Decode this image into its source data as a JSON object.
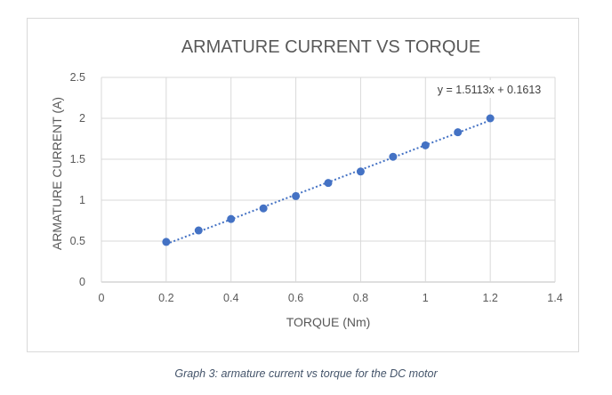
{
  "chart_data": {
    "type": "scatter",
    "title": "ARMATURE CURRENT VS TORQUE",
    "xlabel": "TORQUE (Nm)",
    "ylabel": "ARMATURE CURRENT (A)",
    "xlim": [
      0,
      1.4
    ],
    "ylim": [
      0,
      2.5
    ],
    "xticks": [
      "0",
      "0.2",
      "0.4",
      "0.6",
      "0.8",
      "1",
      "1.2",
      "1.4"
    ],
    "yticks": [
      "0",
      "0.5",
      "1",
      "1.5",
      "2",
      "2.5"
    ],
    "grid": true,
    "series": [
      {
        "x": [
          0.2,
          0.3,
          0.4,
          0.5,
          0.6,
          0.7,
          0.8,
          0.9,
          1.0,
          1.1,
          1.2
        ],
        "y": [
          0.49,
          0.63,
          0.77,
          0.9,
          1.05,
          1.21,
          1.35,
          1.53,
          1.67,
          1.83,
          2.0
        ],
        "color": "#4472c4"
      }
    ],
    "trendline": {
      "type": "linear",
      "slope": 1.5113,
      "intercept": 0.1613,
      "x_range": [
        0.2,
        1.2
      ],
      "style": "dotted",
      "color": "#4472c4",
      "label": "y = 1.5113x + 0.1613"
    }
  },
  "caption": "Graph 3: armature current vs torque for the DC motor"
}
